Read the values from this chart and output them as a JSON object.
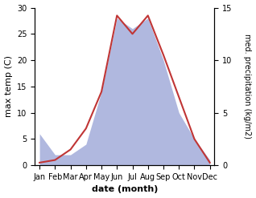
{
  "months": [
    "Jan",
    "Feb",
    "Mar",
    "Apr",
    "May",
    "Jun",
    "Jul",
    "Aug",
    "Sep",
    "Oct",
    "Nov",
    "Dec"
  ],
  "temp": [
    0.5,
    1.0,
    3.0,
    7.0,
    14.0,
    28.5,
    25.0,
    28.5,
    21.0,
    13.0,
    5.0,
    0.5
  ],
  "precip": [
    3.0,
    1.0,
    1.0,
    2.0,
    7.0,
    14.0,
    13.0,
    14.0,
    10.0,
    5.0,
    2.5,
    0.5
  ],
  "temp_color": "#c03535",
  "precip_fill_color": "#b0b8df",
  "temp_ylim": [
    0,
    30
  ],
  "precip_ylim": [
    0,
    15
  ],
  "xlabel": "date (month)",
  "ylabel_left": "max temp (C)",
  "ylabel_right": "med. precipitation (kg/m2)",
  "temp_yticks": [
    0,
    5,
    10,
    15,
    20,
    25,
    30
  ],
  "precip_yticks": [
    0,
    5,
    10,
    15
  ],
  "background_color": "#ffffff"
}
